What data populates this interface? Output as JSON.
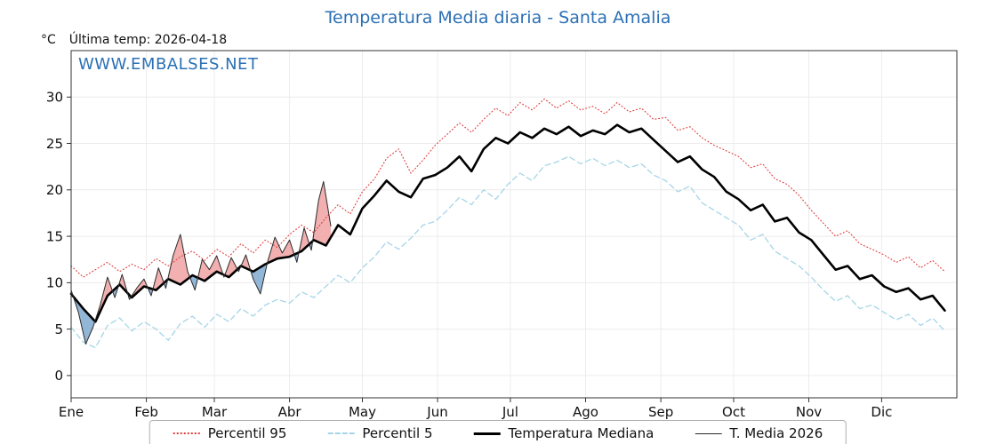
{
  "header": {
    "title": "Temperatura Media diaria - Santa Amalia",
    "y_unit": "°C",
    "last_temp": "Última temp: 2026-04-18"
  },
  "watermark": "WWW.EMBALSES.NET",
  "colors": {
    "accent_blue": "#2b70b5",
    "percentile95_red": "#e03b3b",
    "percentile5_blue": "#a5d5e8",
    "median_black": "#000000",
    "fill_above": "#f0a2a2",
    "fill_below": "#7fa9cf"
  },
  "legend": {
    "items": [
      {
        "label": "Percentil 95",
        "series": "p95"
      },
      {
        "label": "Percentil 5",
        "series": "p5"
      },
      {
        "label": "Temperatura Mediana",
        "series": "median"
      },
      {
        "label": "T. Media 2026",
        "series": "t2026"
      }
    ]
  },
  "chart_data": {
    "type": "line",
    "title": "Temperatura Media diaria - Santa Amalia",
    "xlabel": "",
    "ylabel": "°C",
    "grid": true,
    "grid_color": "#ececec",
    "legend_position": "bottom",
    "x_axis": {
      "months": [
        "Ene",
        "Feb",
        "Mar",
        "Abr",
        "May",
        "Jun",
        "Jul",
        "Ago",
        "Sep",
        "Oct",
        "Nov",
        "Dic"
      ],
      "month_start_days": [
        1,
        32,
        60,
        91,
        121,
        152,
        182,
        213,
        244,
        274,
        305,
        335
      ],
      "domain": [
        1,
        366
      ]
    },
    "y_axis": {
      "ticks": [
        0,
        5,
        10,
        15,
        20,
        25,
        30
      ],
      "range": [
        -2.4,
        35
      ],
      "unit": "°C"
    },
    "fills": {
      "above_color": "#f0a2a2",
      "below_color": "#7fa9cf"
    },
    "series": [
      {
        "id": "p95",
        "name": "Percentil 95",
        "color": "#e03b3b",
        "width": 1.1,
        "style": "dotted",
        "x_start": 1,
        "x_step": 5,
        "values": [
          11.8,
          10.6,
          11.4,
          12.2,
          11.2,
          12.0,
          11.4,
          12.6,
          11.8,
          12.8,
          13.4,
          12.4,
          13.6,
          12.8,
          14.2,
          13.2,
          14.6,
          13.8,
          15.2,
          16.2,
          15.4,
          17.0,
          18.4,
          17.4,
          19.8,
          21.2,
          23.4,
          24.4,
          21.8,
          23.2,
          24.8,
          26.0,
          27.2,
          26.2,
          27.6,
          28.8,
          28.0,
          29.4,
          28.6,
          29.8,
          28.8,
          29.6,
          28.6,
          29.0,
          28.2,
          29.4,
          28.4,
          28.8,
          27.6,
          27.8,
          26.4,
          26.8,
          25.6,
          24.8,
          24.2,
          23.6,
          22.4,
          22.8,
          21.2,
          20.6,
          19.4,
          17.8,
          16.4,
          15.0,
          15.6,
          14.2,
          13.6,
          13.0,
          12.2,
          12.8,
          11.6,
          12.4,
          11.2
        ]
      },
      {
        "id": "p5",
        "name": "Percentil 5",
        "color": "#a5d5e8",
        "width": 1.3,
        "style": "dashed",
        "x_start": 1,
        "x_step": 5,
        "values": [
          5.2,
          3.6,
          3.0,
          5.4,
          6.2,
          4.8,
          5.8,
          5.0,
          3.8,
          5.6,
          6.4,
          5.2,
          6.6,
          5.8,
          7.2,
          6.4,
          7.6,
          8.2,
          7.8,
          9.0,
          8.4,
          9.6,
          10.8,
          10.0,
          11.6,
          12.8,
          14.4,
          13.6,
          14.8,
          16.2,
          16.6,
          17.8,
          19.2,
          18.4,
          20.0,
          19.0,
          20.6,
          21.8,
          21.0,
          22.6,
          23.0,
          23.6,
          22.8,
          23.4,
          22.6,
          23.2,
          22.4,
          22.8,
          21.6,
          21.0,
          19.8,
          20.4,
          18.6,
          17.8,
          17.0,
          16.2,
          14.6,
          15.2,
          13.4,
          12.6,
          11.8,
          10.6,
          9.2,
          8.0,
          8.6,
          7.2,
          7.6,
          6.8,
          6.0,
          6.6,
          5.4,
          6.2,
          4.8
        ]
      },
      {
        "id": "median",
        "name": "Temperatura Mediana",
        "color": "#000000",
        "width": 2.6,
        "style": "solid",
        "x_start": 1,
        "x_step": 5,
        "values": [
          8.8,
          7.2,
          5.8,
          8.6,
          9.8,
          8.4,
          9.6,
          9.2,
          10.4,
          9.8,
          10.8,
          10.2,
          11.2,
          10.6,
          11.8,
          11.2,
          12.0,
          12.6,
          12.8,
          13.4,
          14.6,
          14.0,
          16.2,
          15.2,
          18.0,
          19.4,
          21.0,
          19.8,
          19.2,
          21.2,
          21.6,
          22.4,
          23.6,
          22.0,
          24.4,
          25.6,
          25.0,
          26.2,
          25.6,
          26.6,
          26.0,
          26.8,
          25.8,
          26.4,
          26.0,
          27.0,
          26.2,
          26.6,
          25.4,
          24.2,
          23.0,
          23.6,
          22.2,
          21.4,
          19.8,
          19.0,
          17.8,
          18.4,
          16.6,
          17.0,
          15.4,
          14.6,
          13.0,
          11.4,
          11.8,
          10.4,
          10.8,
          9.6,
          9.0,
          9.4,
          8.2,
          8.6,
          7.0
        ]
      },
      {
        "id": "t2026",
        "name": "T. Media 2026",
        "color": "#2a2a2a",
        "width": 1,
        "style": "solid",
        "x": [
          1,
          4,
          7,
          10,
          13,
          16,
          19,
          22,
          25,
          28,
          31,
          34,
          37,
          40,
          43,
          46,
          49,
          52,
          55,
          58,
          61,
          64,
          67,
          70,
          73,
          76,
          79,
          82,
          85,
          88,
          91,
          94,
          97,
          100,
          103,
          105,
          108
        ],
        "values": [
          9.2,
          6.8,
          3.4,
          5.2,
          7.6,
          10.6,
          8.4,
          10.9,
          8.2,
          9.4,
          10.4,
          8.6,
          11.6,
          9.4,
          12.9,
          15.2,
          11.2,
          9.2,
          12.5,
          11.4,
          12.9,
          10.6,
          12.7,
          11.2,
          13.0,
          10.4,
          8.8,
          12.3,
          14.9,
          13.2,
          14.6,
          12.2,
          15.9,
          13.5,
          18.9,
          20.9,
          16.1
        ]
      }
    ]
  }
}
